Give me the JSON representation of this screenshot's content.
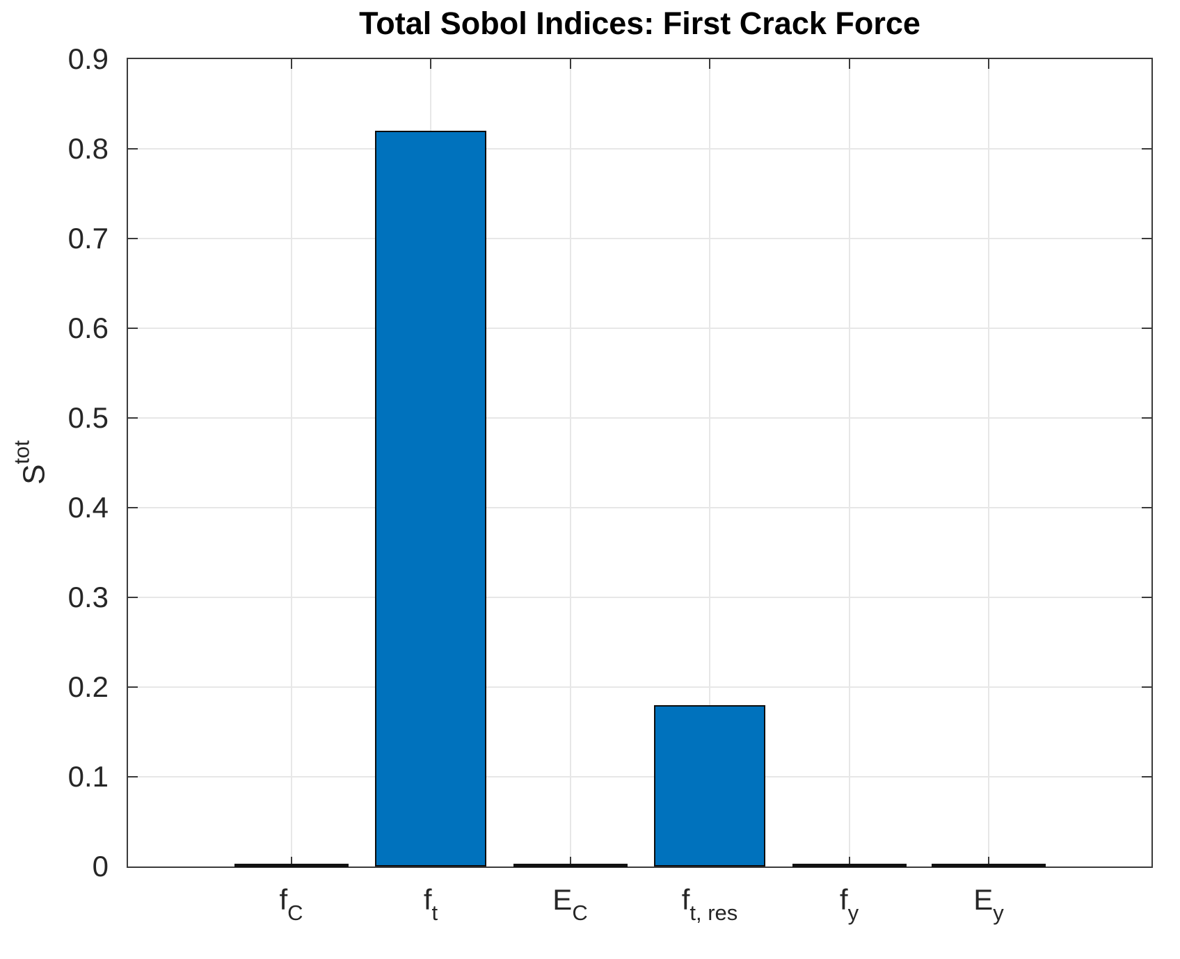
{
  "chart_data": {
    "type": "bar",
    "title": "Total Sobol Indices: First Crack Force",
    "ylabel": {
      "base": "S",
      "sup": "tot"
    },
    "categories": [
      {
        "base": "f",
        "sub": "C"
      },
      {
        "base": "f",
        "sub": "t"
      },
      {
        "base": "E",
        "sub": "C"
      },
      {
        "base": "f",
        "sub": "t, res"
      },
      {
        "base": "f",
        "sub": "y"
      },
      {
        "base": "E",
        "sub": "y"
      }
    ],
    "values": [
      0,
      0.82,
      0,
      0.18,
      0,
      0
    ],
    "ylim": [
      0,
      0.9
    ],
    "yticks": [
      "0",
      "0.1",
      "0.2",
      "0.3",
      "0.4",
      "0.5",
      "0.6",
      "0.7",
      "0.8",
      "0.9"
    ],
    "grid": true,
    "legend": "none",
    "bar_color": "#0072BD",
    "bar_edge_color": "#0d0d0d",
    "zero_bar_color": "#111111",
    "axis_color": "#3a3a3a",
    "grid_color": "#e7e7e7"
  }
}
